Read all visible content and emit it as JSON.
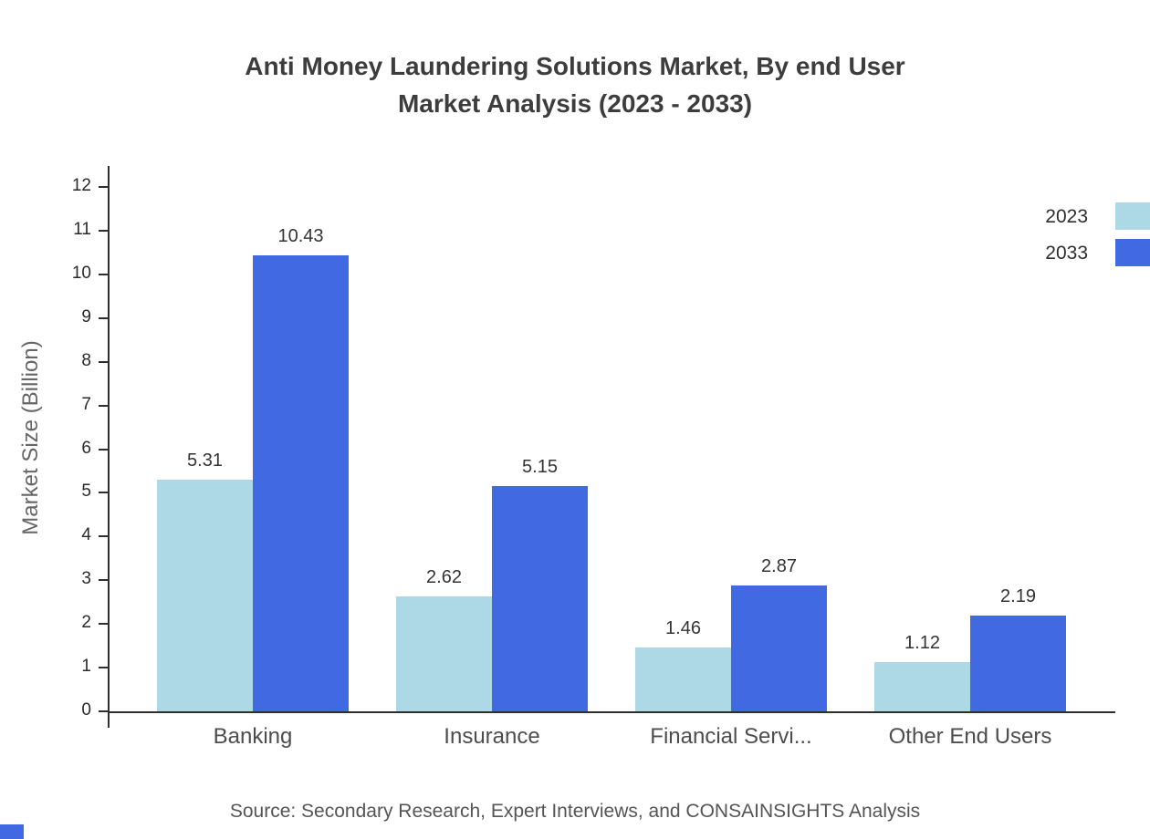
{
  "header": {
    "title_line1": "Anti Money Laundering Solutions Market, By end User",
    "title_line2": "Market Analysis (2023 - 2033)"
  },
  "chart_data": {
    "type": "bar",
    "title": "Anti Money Laundering Solutions Market, By end User Market Analysis (2023 - 2033)",
    "categories": [
      "Banking",
      "Insurance",
      "Financial Servi...",
      "Other End Users"
    ],
    "series": [
      {
        "name": "2023",
        "color": "#add8e6",
        "values": [
          5.31,
          2.62,
          1.46,
          1.12
        ]
      },
      {
        "name": "2033",
        "color": "#4169e1",
        "values": [
          10.43,
          5.15,
          2.87,
          2.19
        ]
      }
    ],
    "xlabel": "",
    "ylabel": "Market Size (Billion)",
    "ylim": [
      0,
      12
    ],
    "ytick_step": 1,
    "grid": false,
    "legend": {
      "position": "top-right",
      "entries": [
        "2023",
        "2033"
      ]
    },
    "source": "Source: Secondary Research, Expert Interviews, and CONSAINSIGHTS Analysis"
  },
  "colors": {
    "series_2023": "#add8e6",
    "series_2033": "#4169e1",
    "title_text": "#3d3d3d",
    "axis_text": "#2a2a2a",
    "muted_text": "#666666",
    "axis_line": "#2e2e2e"
  }
}
